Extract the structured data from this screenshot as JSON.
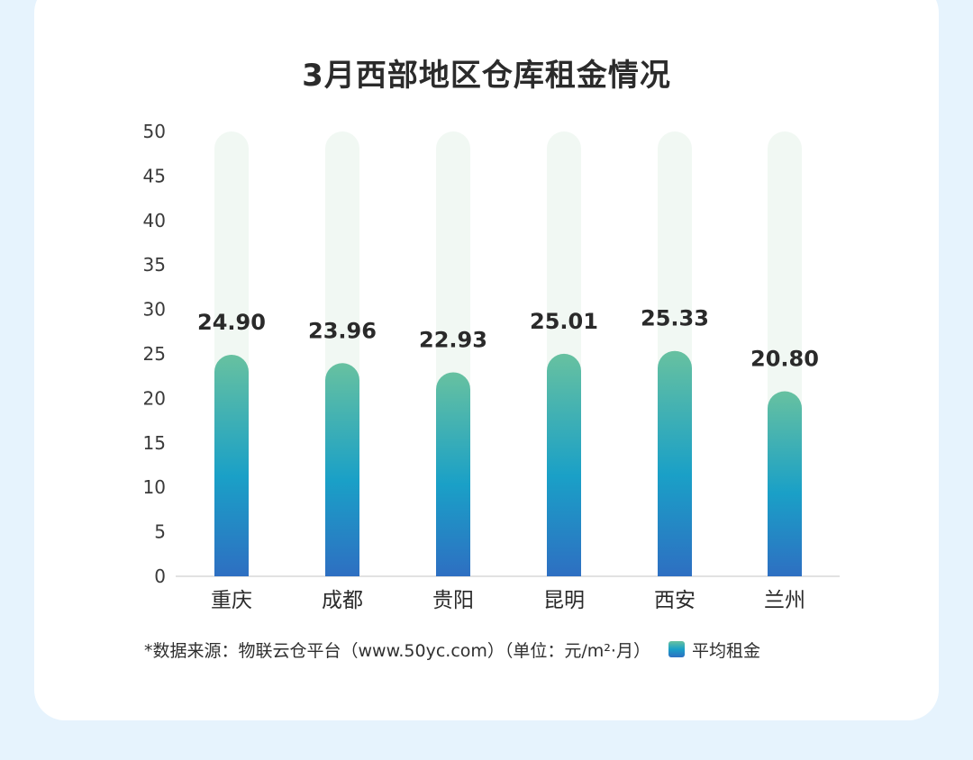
{
  "chart_data": {
    "type": "bar",
    "title": "3月西部地区仓库租金情况",
    "categories": [
      "重庆",
      "成都",
      "贵阳",
      "昆明",
      "西安",
      "兰州"
    ],
    "series": [
      {
        "name": "平均租金",
        "values": [
          24.9,
          23.96,
          22.93,
          25.01,
          25.33,
          20.8
        ]
      }
    ],
    "value_labels": [
      "24.90",
      "23.96",
      "22.93",
      "25.01",
      "25.33",
      "20.80"
    ],
    "ylim": [
      0,
      50
    ],
    "yticks": [
      "0",
      "5",
      "10",
      "15",
      "20",
      "25",
      "30",
      "35",
      "40",
      "45",
      "50"
    ],
    "xlabel": "",
    "ylabel": "",
    "grid": false,
    "legend_position": "bottom-right",
    "colors": {
      "bar_top": "#67c1a0",
      "bar_mid": "#1aa0c7",
      "bar_bottom": "#2e6fc2",
      "track": "#f1f8f3"
    }
  },
  "footer": {
    "source_note": "*数据来源：物联云仓平台（www.50yc.com）（单位：元/m²·月）"
  }
}
